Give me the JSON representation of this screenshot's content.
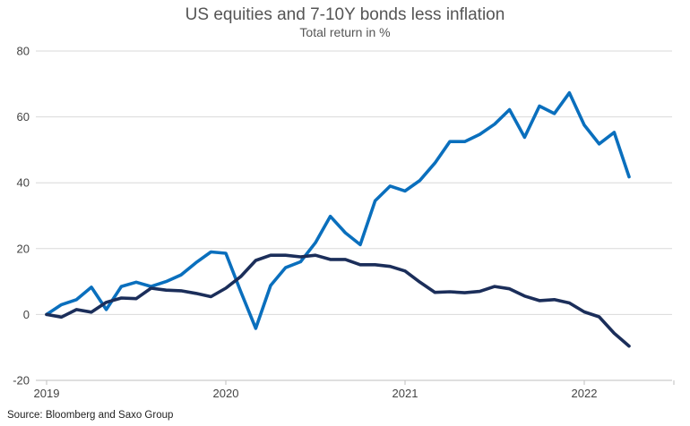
{
  "chart_data": {
    "type": "line",
    "title": "US equities and 7-10Y bonds less inflation",
    "subtitle": "Total return in %",
    "source": "Source: Bloomberg and Saxo Group",
    "xlabel": "",
    "ylabel": "",
    "ylim": [
      -20,
      80
    ],
    "yticks": [
      -20,
      0,
      20,
      40,
      60,
      80
    ],
    "xticks": [
      {
        "label": "2019",
        "value": 2019.0
      },
      {
        "label": "2020",
        "value": 2020.0
      },
      {
        "label": "2021",
        "value": 2021.0
      },
      {
        "label": "2022",
        "value": 2022.0
      }
    ],
    "xlim": [
      2019.0,
      2022.5
    ],
    "grid": true,
    "legend": "none",
    "x": [
      2019.0,
      2019.083,
      2019.167,
      2019.25,
      2019.333,
      2019.417,
      2019.5,
      2019.583,
      2019.667,
      2019.75,
      2019.833,
      2019.917,
      2020.0,
      2020.083,
      2020.167,
      2020.25,
      2020.333,
      2020.417,
      2020.5,
      2020.583,
      2020.667,
      2020.75,
      2020.833,
      2020.917,
      2021.0,
      2021.083,
      2021.167,
      2021.25,
      2021.333,
      2021.417,
      2021.5,
      2021.583,
      2021.667,
      2021.75,
      2021.833,
      2021.917,
      2022.0,
      2022.083,
      2022.167,
      2022.25
    ],
    "series": [
      {
        "color": "#0a6fbd",
        "values": [
          0,
          3,
          4.5,
          8.3,
          1.5,
          8.5,
          9.8,
          8.5,
          10,
          12,
          15.7,
          19,
          18.6,
          7,
          -4.2,
          8.8,
          14.2,
          16,
          21.8,
          29.8,
          24.8,
          21.2,
          34.5,
          39,
          37.5,
          40.7,
          46,
          52.5,
          52.5,
          54.7,
          57.8,
          62.2,
          53.8,
          63.3,
          61,
          67.3,
          57.5,
          51.8,
          55.3,
          41.8
        ]
      },
      {
        "color": "#1b2e5a",
        "values": [
          0,
          -0.8,
          1.5,
          0.7,
          3.7,
          5,
          4.8,
          8,
          7.4,
          7.2,
          6.4,
          5.4,
          8,
          11.5,
          16.4,
          18,
          18,
          17.5,
          18,
          16.7,
          16.7,
          15.1,
          15.1,
          14.6,
          13.2,
          9.8,
          6.7,
          6.9,
          6.6,
          7,
          8.5,
          7.8,
          5.6,
          4.2,
          4.5,
          3.5,
          0.8,
          -0.7,
          -5.7,
          -9.6
        ]
      }
    ]
  }
}
